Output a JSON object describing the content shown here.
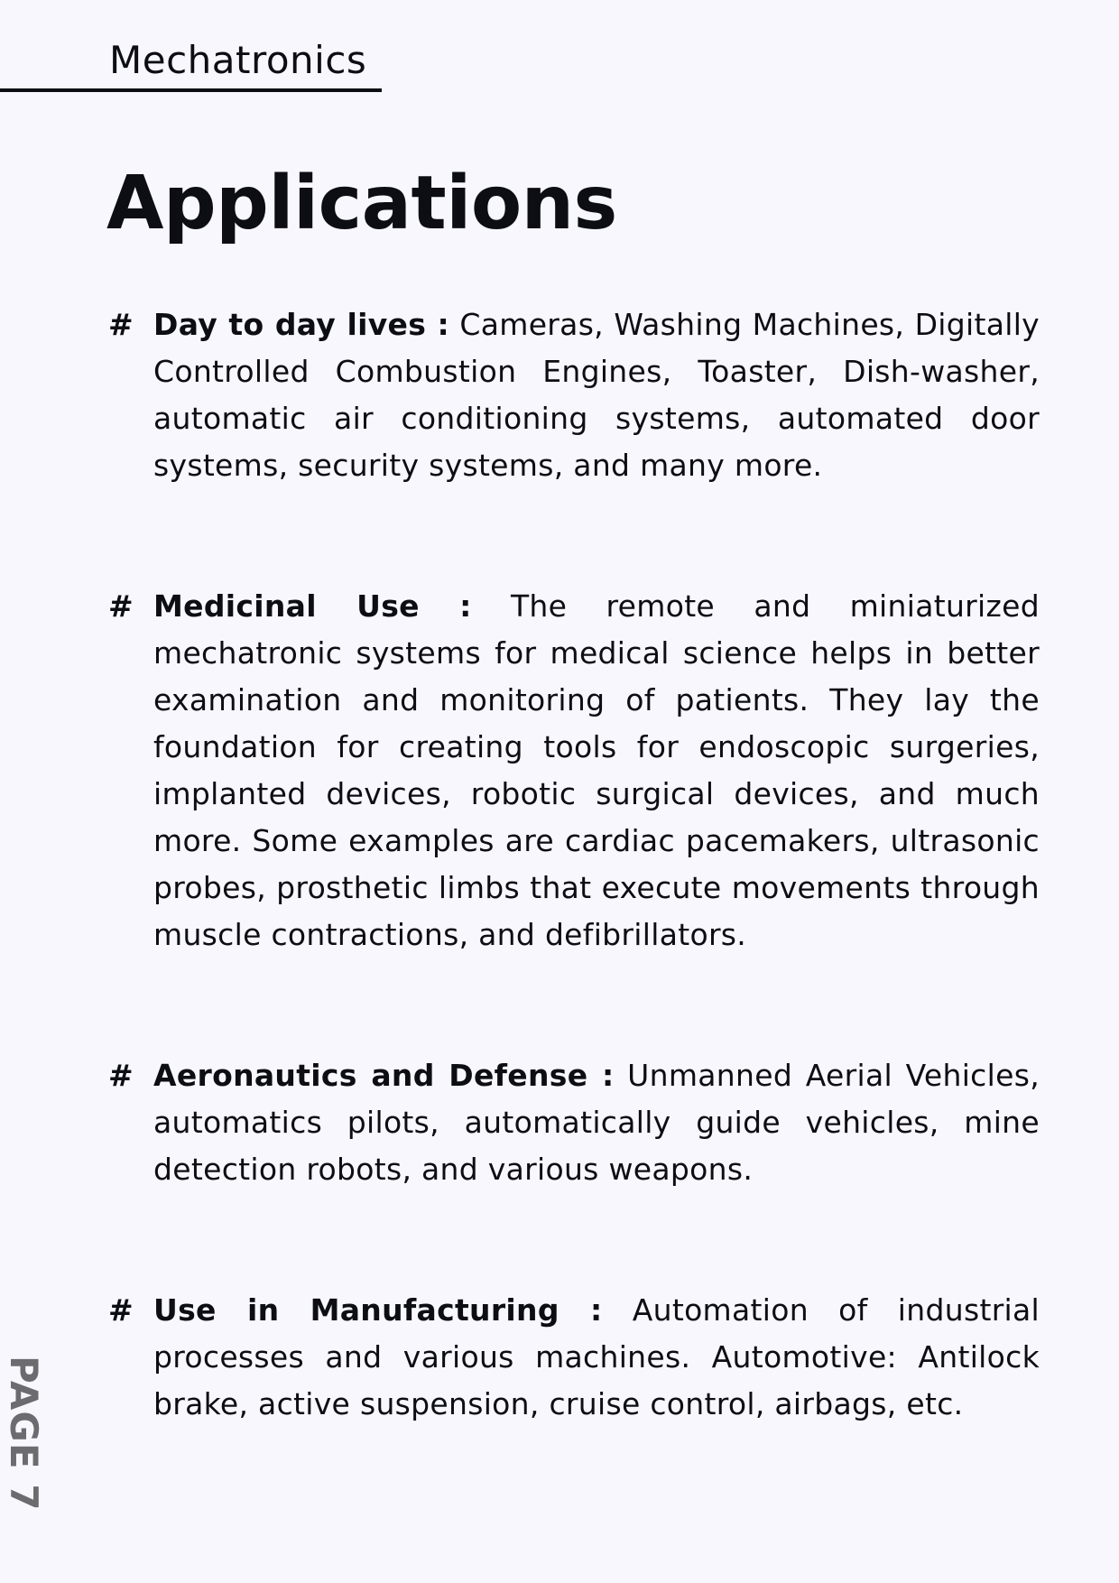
{
  "header": {
    "title": "Mechatronics"
  },
  "page": {
    "title": "Applications",
    "label": "PAGE 7"
  },
  "sections": [
    {
      "bullet": "#",
      "heading": "Day to day lives :",
      "text": "Cameras, Washing Machines, Digitally Controlled Combustion Engines, Toaster, Dish-washer, automatic air conditioning systems, automated door systems, security systems, and many more."
    },
    {
      "bullet": "#",
      "heading": "Medicinal Use :",
      "text": "The remote and miniaturized mechatronic systems for medical science helps in better examination and monitoring of patients. They lay the foundation for creating tools for endoscopic surgeries, implanted devices, robotic surgical devices, and much more. Some examples are cardiac pacemakers, ultrasonic probes, prosthetic limbs that execute movements through muscle contractions, and defibrillators."
    },
    {
      "bullet": "#",
      "heading": "Aeronautics and Defense :",
      "text": "Unmanned Aerial Vehicles, automatics pilots, automatically guide vehicles, mine detection robots, and various weapons."
    },
    {
      "bullet": "#",
      "heading": "Use in Manufacturing :",
      "text": "Automation of industrial processes and various machines. Automotive: Antilock brake, active suspension, cruise control, airbags, etc."
    }
  ]
}
